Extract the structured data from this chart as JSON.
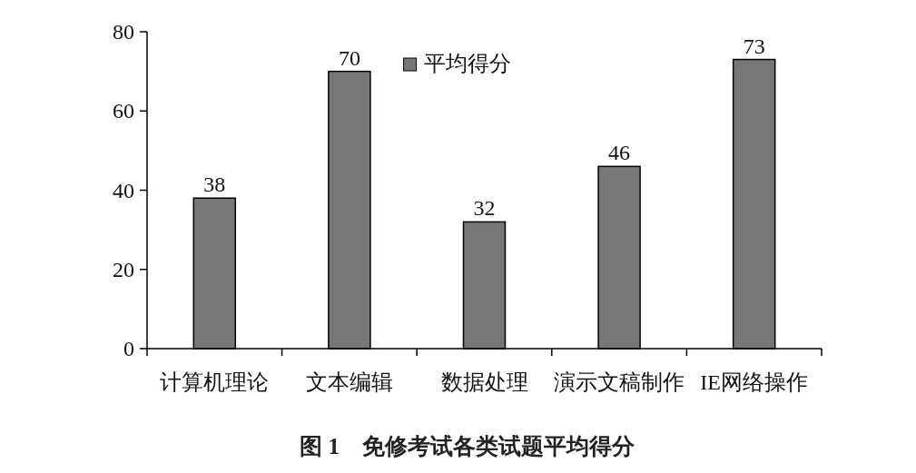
{
  "chart_data": {
    "type": "bar",
    "title": "图 1　免修考试各类试题平均得分",
    "categories": [
      "计算机理论",
      "文本编辑",
      "数据处理",
      "演示文稿制作",
      "IE网络操作"
    ],
    "series": [
      {
        "name": "平均得分",
        "color": "#777777",
        "values": [
          38,
          70,
          32,
          46,
          73
        ]
      }
    ],
    "ylim": [
      0,
      80
    ],
    "yticks": [
      0,
      20,
      40,
      60,
      80
    ],
    "data_labels": true,
    "legend": "top",
    "grid": false
  }
}
